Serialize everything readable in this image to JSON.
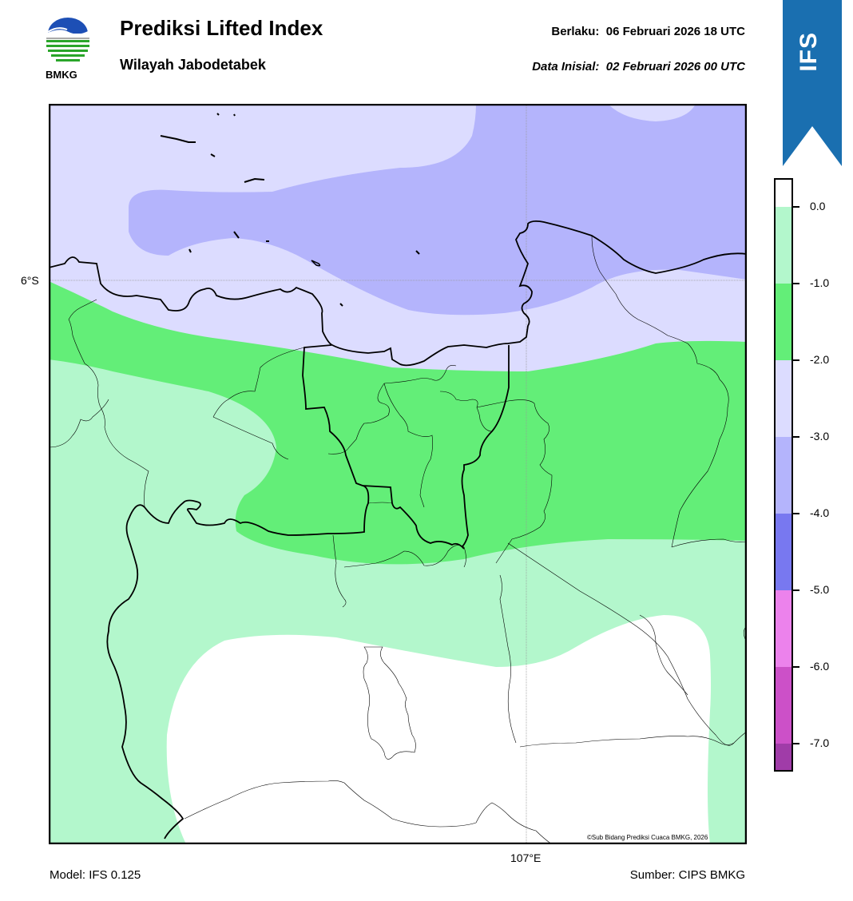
{
  "header": {
    "title": "Prediksi Lifted Index",
    "subtitle": "Wilayah Jabodetabek",
    "valid_label": "Berlaku:",
    "valid_value": "06 Februari 2026 18 UTC",
    "init_label": "Data Inisial:",
    "init_value": "02 Februari 2026 00 UTC"
  },
  "logo": {
    "text": "BMKG",
    "icon": "bmkg-logo-icon"
  },
  "ribbon": {
    "text": "IFS",
    "color": "#1a6fb0"
  },
  "map": {
    "lat_label": "6°S",
    "lon_label": "107°E",
    "copyright": "©Sub Bidang Prediksi Cuaca BMKG, 2026"
  },
  "colorbar": {
    "ticks": [
      "0.0",
      "-1.0",
      "-2.0",
      "-3.0",
      "-4.0",
      "-5.0",
      "-6.0",
      "-7.0"
    ],
    "colors": [
      "#ffffff",
      "#b3f7cc",
      "#63ee78",
      "#dcdcff",
      "#b4b4fc",
      "#7878f0",
      "#ec82ec",
      "#cc50c8",
      "#a03ca8",
      "#7a1e82"
    ]
  },
  "footer": {
    "model": "Model: IFS 0.125",
    "source": "Sumber: CIPS BMKG"
  }
}
